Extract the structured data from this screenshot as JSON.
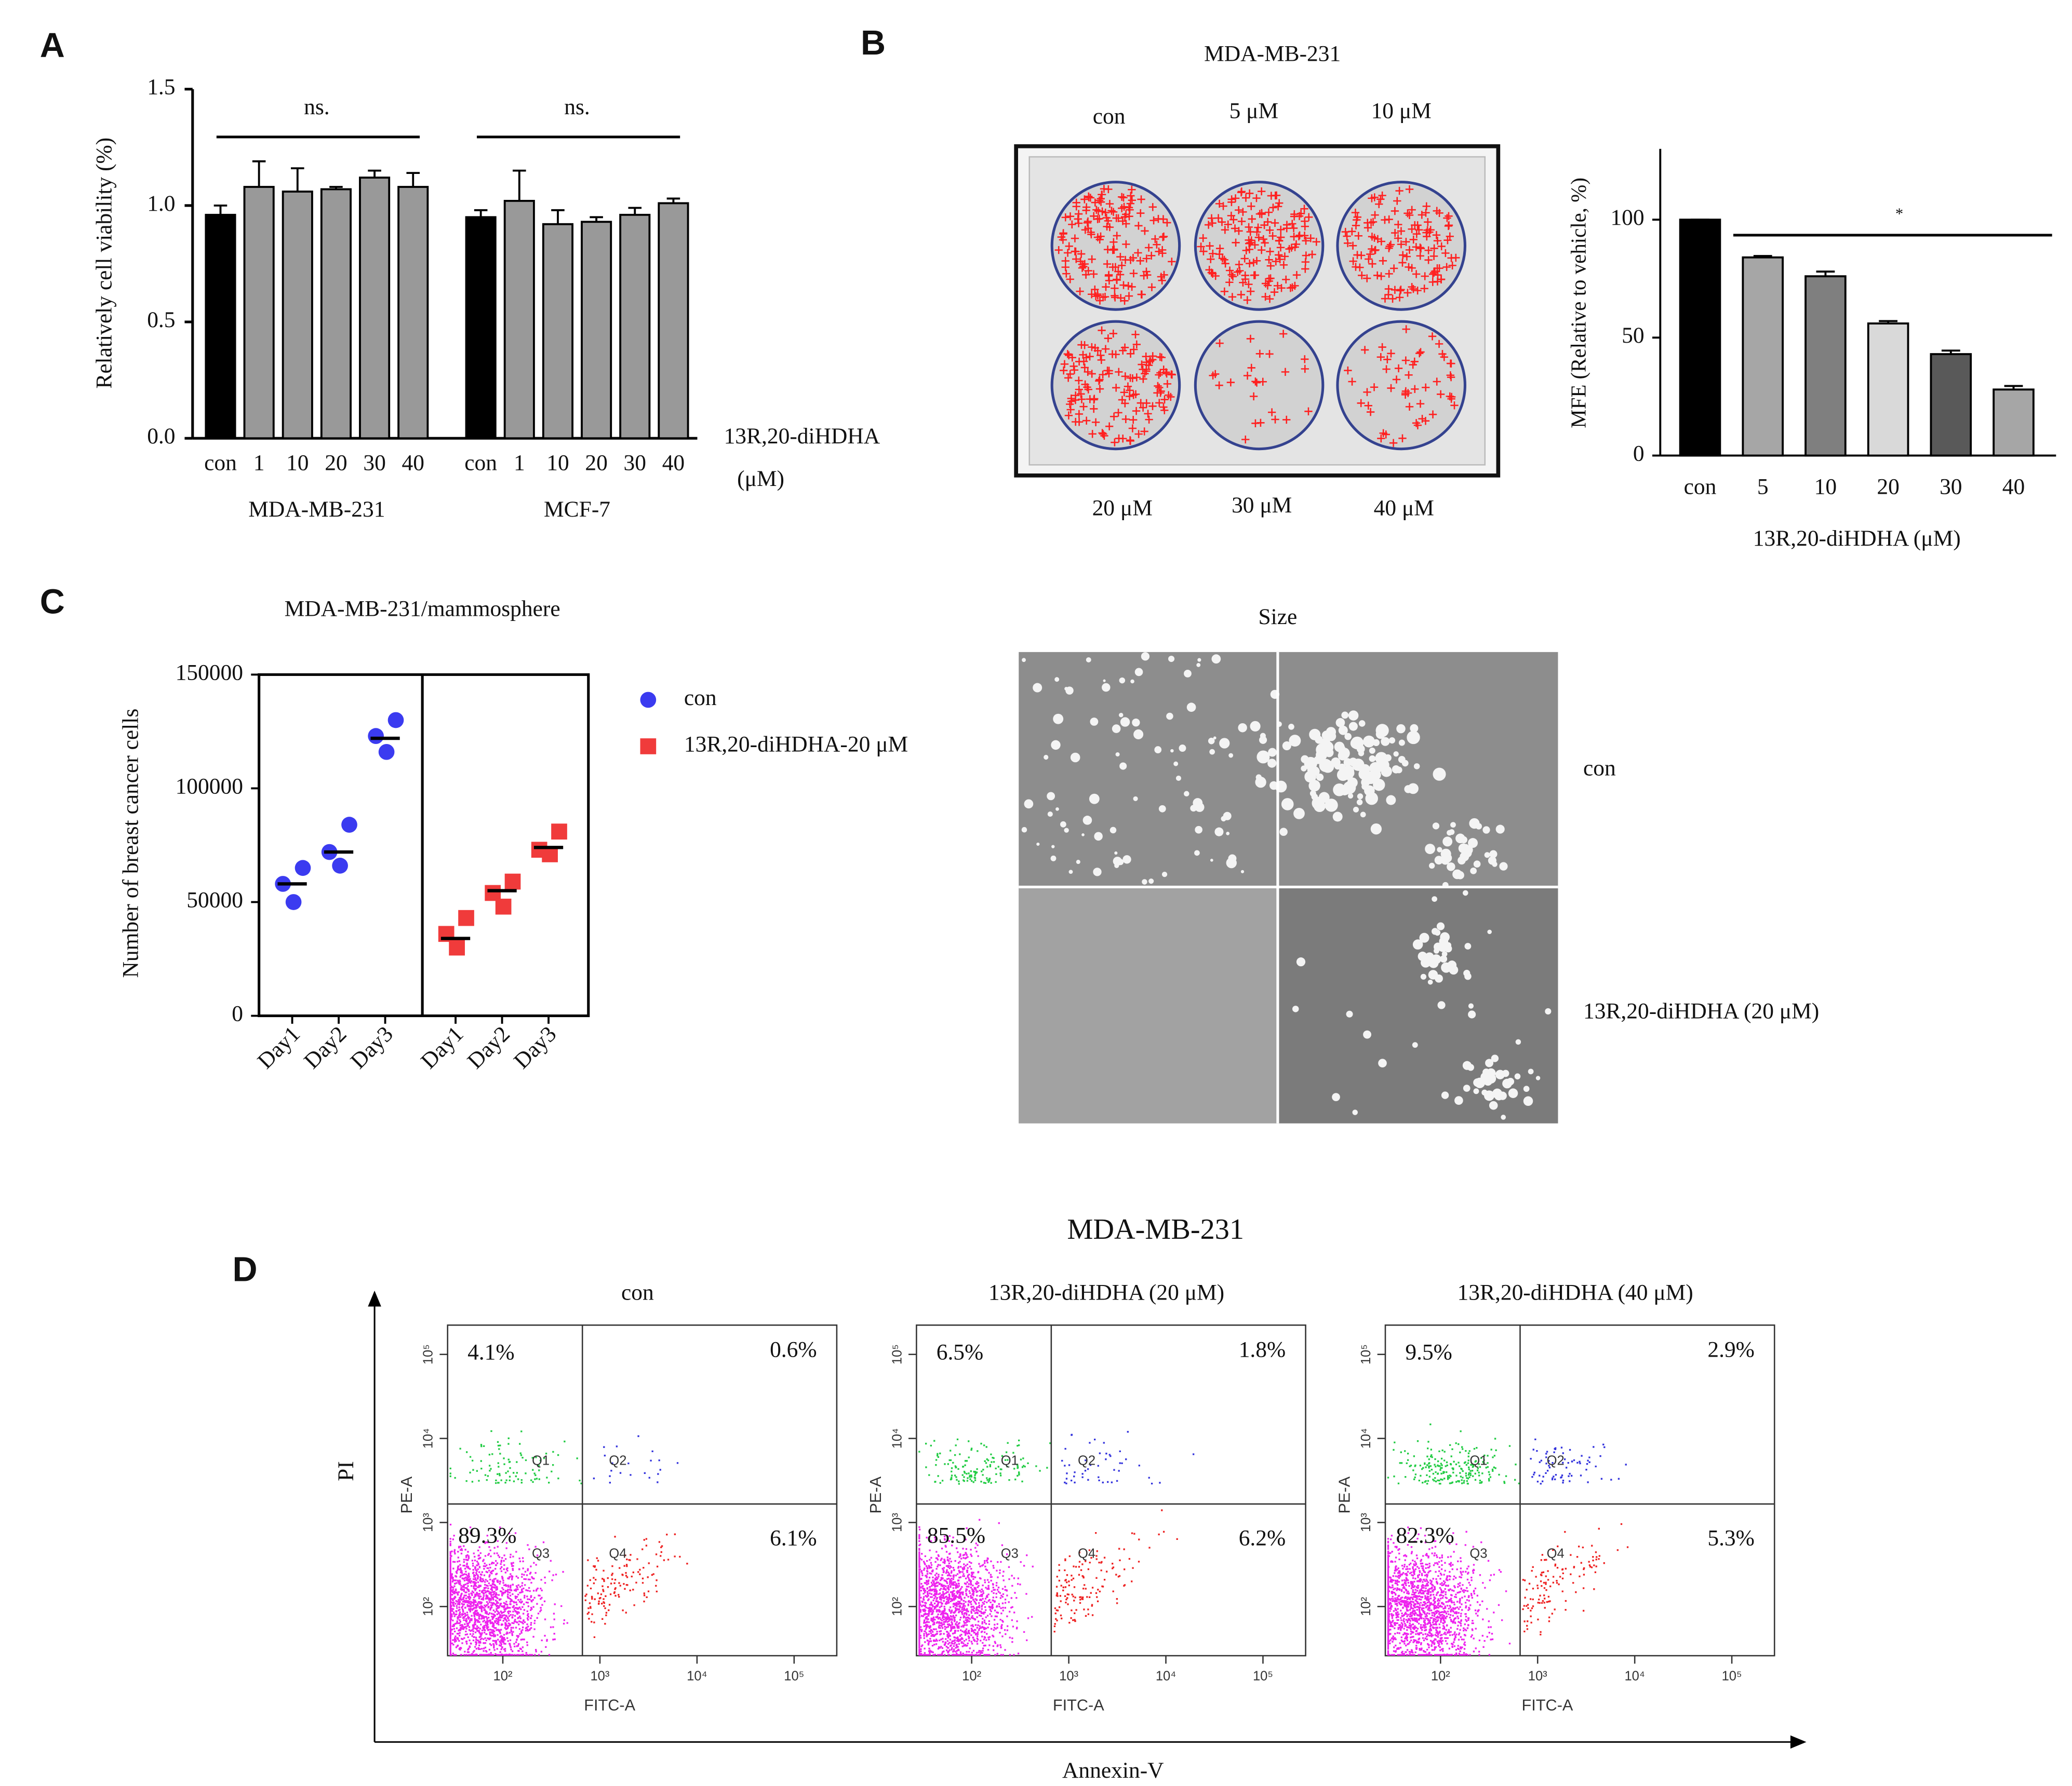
{
  "panel_labels": [
    "A",
    "B",
    "C",
    "D"
  ],
  "chart_data": [
    {
      "type": "bar",
      "ylabel": "Relatively cell viability (%)",
      "categories": [
        "con",
        "1",
        "10",
        "20",
        "30",
        "40",
        "con",
        "1",
        "10",
        "20",
        "30",
        "40"
      ],
      "values": [
        0.96,
        1.08,
        1.06,
        1.07,
        1.12,
        1.08,
        0.95,
        1.02,
        0.92,
        0.93,
        0.96,
        1.01
      ],
      "errors": [
        0.04,
        0.11,
        0.1,
        0.01,
        0.03,
        0.06,
        0.03,
        0.13,
        0.06,
        0.02,
        0.03,
        0.02
      ],
      "colors": [
        "#000000",
        "#999999",
        "#999999",
        "#999999",
        "#999999",
        "#999999",
        "#000000",
        "#999999",
        "#999999",
        "#999999",
        "#999999",
        "#999999"
      ],
      "group_labels": [
        "MDA-MB-231",
        "MCF-7"
      ],
      "annotations": [
        "ns.",
        "ns."
      ],
      "xlabel_lines": [
        "13R,20-diHDHA",
        "(μM)"
      ],
      "ylim": [
        0,
        1.5
      ],
      "yticks": [
        {
          "value": 0,
          "label": "0.0"
        },
        {
          "value": 0.5,
          "label": "0.5"
        },
        {
          "value": 1,
          "label": "1.0"
        },
        {
          "value": 1.5,
          "label": "1.5"
        }
      ]
    },
    {
      "type": "bar",
      "ylabel": "MFE (Relative to vehicle, %)",
      "xlabel": "13R,20-diHDHA (μM)",
      "categories": [
        "con",
        "5",
        "10",
        "20",
        "30",
        "40"
      ],
      "values": [
        100,
        84,
        76,
        56,
        43,
        28
      ],
      "errors": [
        0,
        0.6,
        2,
        1,
        1.5,
        1.5
      ],
      "colors": [
        "#000000",
        "#a6a6a6",
        "#7f7f7f",
        "#d9d9d9",
        "#595959",
        "#a6a6a6"
      ],
      "annotations": [
        "*"
      ],
      "ylim": [
        0,
        130
      ],
      "yticks": [
        0,
        50,
        100
      ]
    },
    {
      "type": "dot",
      "title": "MDA-MB-231/mammosphere",
      "ylabel": "Number of breast cancer cells",
      "ylim": [
        0,
        150000
      ],
      "yticks": [
        0,
        50000,
        100000,
        150000
      ],
      "series": [
        {
          "name": "con",
          "color": "#3b3bf0",
          "marker": "circle",
          "categories": [
            "Day1",
            "Day2",
            "Day3"
          ],
          "values": [
            [
              65000,
              58000,
              50000
            ],
            [
              84000,
              72000,
              66000
            ],
            [
              130000,
              123000,
              116000
            ]
          ],
          "means": [
            58000,
            72000,
            122000
          ]
        },
        {
          "name": "13R,20-diHDHA-20 μM",
          "color": "#f03b3b",
          "marker": "square",
          "categories": [
            "Day1",
            "Day2",
            "Day3"
          ],
          "values": [
            [
              43000,
              36000,
              30000
            ],
            [
              59000,
              54000,
              48000
            ],
            [
              81000,
              73000,
              71000
            ]
          ],
          "means": [
            34000,
            55000,
            74000
          ]
        }
      ]
    },
    {
      "type": "flow",
      "title": "MDA-MB-231",
      "xlabel": "Annexin-V",
      "ylabel": "PI",
      "inner_xlabel": "FITC-A",
      "inner_ylabel": "PE-A",
      "quadrant_names": [
        "Q1",
        "Q2",
        "Q3",
        "Q4"
      ],
      "xscale": "log",
      "yscale": "log",
      "xlim": [
        27,
        275000
      ],
      "ylim": [
        26,
        223000
      ],
      "xticks": [
        {
          "value": 100,
          "label": "10²"
        },
        {
          "value": 1000,
          "label": "10³"
        },
        {
          "value": 10000,
          "label": "10⁴"
        },
        {
          "value": 100000,
          "label": "10⁵"
        }
      ],
      "yticks": [
        {
          "value": 100,
          "label": "10²"
        },
        {
          "value": 1000,
          "label": "10³"
        },
        {
          "value": 10000,
          "label": "10⁴"
        },
        {
          "value": 100000,
          "label": "10⁵"
        }
      ],
      "gates": [
        660,
        1660
      ],
      "colors": [
        "#22cc44",
        "#3333dd",
        "#ee22ee",
        "#ee2222"
      ],
      "plots": [
        {
          "title": "con",
          "values": [
            4.1,
            0.6,
            89.3,
            6.1
          ],
          "value_labels": [
            "4.1%",
            "0.6%",
            "89.3%",
            "6.1%"
          ]
        },
        {
          "title": "13R,20-diHDHA  (20 μM)",
          "values": [
            6.5,
            1.8,
            85.5,
            6.2
          ],
          "value_labels": [
            "6.5%",
            "1.8%",
            "85.5%",
            "6.2%"
          ]
        },
        {
          "title": "13R,20-diHDHA  (40 μM)",
          "values": [
            9.5,
            2.9,
            82.3,
            5.3
          ],
          "value_labels": [
            "9.5%",
            "2.9%",
            "82.3%",
            "5.3%"
          ]
        }
      ]
    }
  ],
  "images": [
    {
      "title": "MDA-MB-231",
      "labels_top": [
        "con",
        "5 μM",
        "10 μM"
      ],
      "labels_bottom": [
        "20 μM",
        "30 μM",
        "40 μM"
      ]
    },
    {
      "title": "Size",
      "row_labels": [
        "con",
        "13R,20-diHDHA  (20 μM)"
      ]
    }
  ]
}
